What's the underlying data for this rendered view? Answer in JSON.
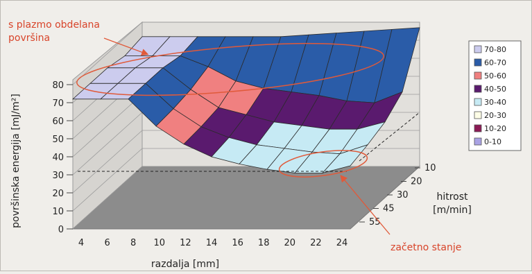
{
  "chart_data": {
    "type": "3d-surface",
    "title": "",
    "xlabel": "razdalja [mm]",
    "ylabel": "površinska energija [mJ/m²]",
    "zlabel_line1": "hitrost",
    "zlabel_line2": "[m/min]",
    "x_ticks": [
      "4",
      "6",
      "8",
      "10",
      "12",
      "14",
      "16",
      "18",
      "20",
      "22",
      "24"
    ],
    "y_ticks": [
      "0",
      "10",
      "20",
      "30",
      "40",
      "50",
      "60",
      "70",
      "80"
    ],
    "depth_ticks": [
      "10",
      "20",
      "30",
      "45",
      "55"
    ],
    "ylim": [
      0,
      80
    ],
    "legend_placement": "right",
    "legend": [
      {
        "label": "70-80",
        "color": "#ccccee"
      },
      {
        "label": "60-70",
        "color": "#2a5ca8"
      },
      {
        "label": "50-60",
        "color": "#f08080"
      },
      {
        "label": "40-50",
        "color": "#5a1a6e"
      },
      {
        "label": "30-40",
        "color": "#c6eaf4"
      },
      {
        "label": "20-30",
        "color": "#fdfde6"
      },
      {
        "label": "10-20",
        "color": "#8b1a55"
      },
      {
        "label": "0-10",
        "color": "#a9a2e4"
      }
    ],
    "annotations": {
      "plasma": {
        "line1": "s plazmo obdelana",
        "line2": "površina"
      },
      "initial": "začetno stanje"
    },
    "series": [
      {
        "name": "10",
        "values": [
          72,
          72,
          72,
          72,
          72,
          72,
          73,
          74,
          75,
          76,
          77
        ]
      },
      {
        "name": "20",
        "values": [
          70,
          70,
          70,
          64,
          56,
          52,
          50,
          48,
          45,
          44,
          50
        ]
      },
      {
        "name": "30",
        "values": [
          72,
          72,
          72,
          60,
          50,
          46,
          42,
          40,
          38,
          38,
          42
        ]
      },
      {
        "name": "45",
        "values": [
          72,
          72,
          72,
          58,
          48,
          42,
          38,
          36,
          34,
          33,
          38
        ]
      },
      {
        "name": "55",
        "values": [
          72,
          72,
          72,
          57,
          47,
          40,
          36,
          33,
          31,
          31,
          35
        ]
      }
    ]
  }
}
